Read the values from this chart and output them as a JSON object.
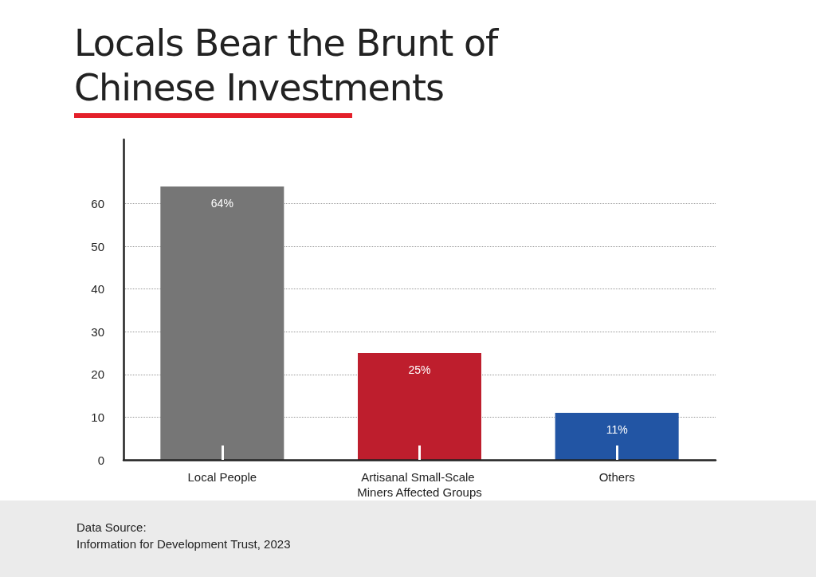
{
  "chart_data": {
    "type": "bar",
    "title": "Locals Bear the Brunt of Chinese Investments",
    "categories": [
      "Local People",
      "Artisanal Small-Scale Miners Affected Groups",
      "Others"
    ],
    "values": [
      64,
      25,
      11
    ],
    "colors": [
      "#767676",
      "#be1e2d",
      "#2255a4"
    ],
    "value_labels": [
      "64%",
      "25%",
      "11%"
    ],
    "ylim": [
      0,
      75
    ],
    "yticks": [
      0,
      10,
      20,
      30,
      40,
      50,
      60
    ],
    "grid": "y",
    "annotations": [
      "Data Source:",
      "Information for Development Trust, 2023"
    ]
  }
}
